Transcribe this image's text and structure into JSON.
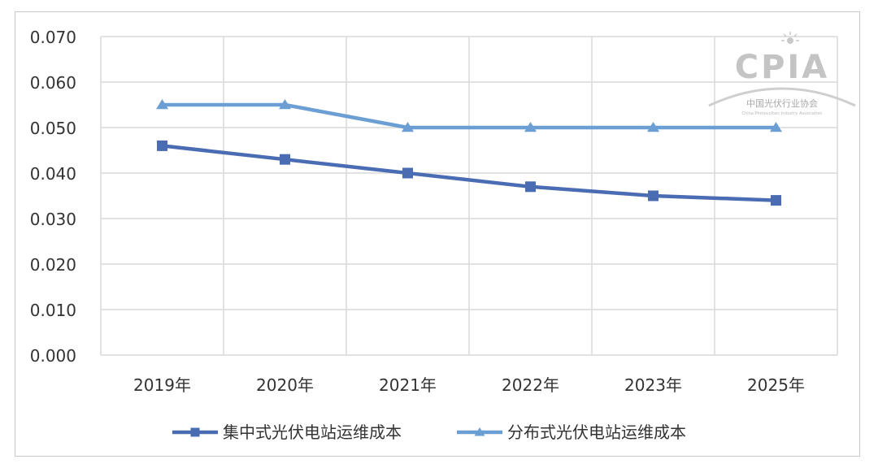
{
  "chart_data": {
    "type": "line",
    "categories": [
      "2019年",
      "2020年",
      "2021年",
      "2022年",
      "2023年",
      "2025年"
    ],
    "series": [
      {
        "name": "集中式光伏电站运维成本",
        "values": [
          0.046,
          0.043,
          0.04,
          0.037,
          0.035,
          0.034
        ],
        "color": "#4a6cb3",
        "marker": "square"
      },
      {
        "name": "分布式光伏电站运维成本",
        "values": [
          0.055,
          0.055,
          0.05,
          0.05,
          0.05,
          0.05
        ],
        "color": "#6b9fd4",
        "marker": "triangle"
      }
    ],
    "y_ticks": [
      "0.000",
      "0.010",
      "0.020",
      "0.030",
      "0.040",
      "0.050",
      "0.060",
      "0.070"
    ],
    "ylim": [
      0,
      0.07
    ],
    "grid": true,
    "legend_position": "bottom"
  },
  "watermark": {
    "logo_text": "CPIA",
    "org_name": "中国光伏行业协会",
    "org_name_en": "China Photovoltaic Industry Association"
  }
}
